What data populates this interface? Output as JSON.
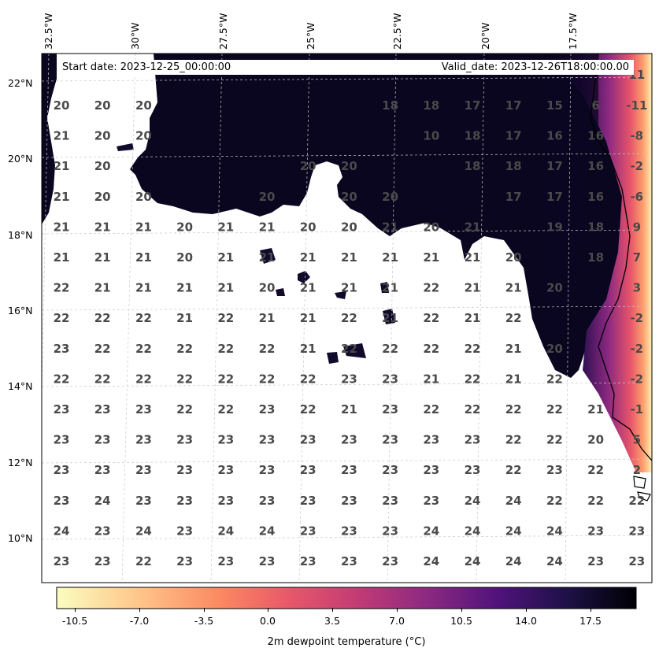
{
  "info": {
    "start_date": "Start date: 2023-12-25_00:00:00",
    "valid_date": "Valid_date: 2023-12-26T18:00:00.00"
  },
  "lon_labels": [
    "32.5°W",
    "30°W",
    "27.5°W",
    "25°W",
    "22.5°W",
    "20°W",
    "17.5°W"
  ],
  "lat_labels": [
    "22°N",
    "20°N",
    "18°N",
    "16°N",
    "14°N",
    "12°N",
    "10°N"
  ],
  "colorbar": {
    "label": "2m dewpoint temperature ($^\\circ$C)",
    "label_display": "2m dewpoint temperature (°C)",
    "ticks": [
      "-10.5",
      "-7.0",
      "-3.5",
      "0.0",
      "3.5",
      "7.0",
      "10.5",
      "14.0",
      "17.5"
    ],
    "min": -12.25,
    "max": 19.25,
    "colormap": "magma_r",
    "colors": [
      "#fcfdbf",
      "#fe9f6d",
      "#de4968",
      "#8c2981",
      "#3b0f70",
      "#000004"
    ]
  },
  "grid_values": [
    [
      "20",
      "20",
      "20",
      "",
      "",
      "",
      "",
      "",
      "18",
      "18",
      "17",
      "17",
      "15",
      "6",
      "-11"
    ],
    [
      "21",
      "20",
      "20",
      "",
      "",
      "",
      "",
      "",
      "",
      "10",
      "18",
      "17",
      "16",
      "16",
      "-8"
    ],
    [
      "21",
      "20",
      "",
      "",
      "",
      "",
      "20",
      "20",
      "",
      "",
      "18",
      "18",
      "17",
      "16",
      "-2"
    ],
    [
      "21",
      "20",
      "20",
      "",
      "",
      "20",
      "",
      "20",
      "20",
      "",
      "",
      "17",
      "17",
      "16",
      "-6"
    ],
    [
      "21",
      "21",
      "21",
      "20",
      "21",
      "21",
      "20",
      "20",
      "21",
      "20",
      "21",
      "",
      "19",
      "18",
      "9"
    ],
    [
      "21",
      "21",
      "21",
      "20",
      "21",
      "21",
      "21",
      "21",
      "21",
      "21",
      "21",
      "20",
      "",
      "18",
      "7"
    ],
    [
      "22",
      "21",
      "21",
      "21",
      "21",
      "20",
      "21",
      "21",
      "21",
      "22",
      "21",
      "21",
      "20",
      "",
      "3"
    ],
    [
      "22",
      "22",
      "22",
      "21",
      "22",
      "21",
      "21",
      "22",
      "21",
      "22",
      "21",
      "22",
      "",
      "",
      "-2"
    ],
    [
      "23",
      "22",
      "22",
      "22",
      "22",
      "22",
      "21",
      "22",
      "22",
      "22",
      "22",
      "21",
      "20",
      "",
      "-2"
    ],
    [
      "22",
      "22",
      "22",
      "22",
      "22",
      "22",
      "22",
      "23",
      "23",
      "21",
      "22",
      "21",
      "22",
      "",
      "-2"
    ],
    [
      "23",
      "23",
      "23",
      "22",
      "22",
      "23",
      "22",
      "21",
      "23",
      "22",
      "22",
      "22",
      "22",
      "21",
      "-1"
    ],
    [
      "23",
      "23",
      "23",
      "23",
      "23",
      "23",
      "23",
      "23",
      "23",
      "23",
      "23",
      "22",
      "22",
      "20",
      "5"
    ],
    [
      "23",
      "23",
      "23",
      "23",
      "23",
      "23",
      "23",
      "23",
      "23",
      "23",
      "23",
      "22",
      "23",
      "22",
      "2"
    ],
    [
      "23",
      "24",
      "23",
      "23",
      "23",
      "23",
      "23",
      "23",
      "23",
      "23",
      "24",
      "24",
      "22",
      "22",
      "22"
    ],
    [
      "24",
      "23",
      "24",
      "23",
      "24",
      "24",
      "23",
      "23",
      "23",
      "24",
      "24",
      "24",
      "24",
      "23",
      "23"
    ],
    [
      "23",
      "23",
      "22",
      "23",
      "23",
      "23",
      "23",
      "23",
      "23",
      "24",
      "24",
      "24",
      "24",
      "23",
      "23"
    ]
  ],
  "top_row_partial": [
    "",
    "",
    "",
    "",
    "",
    "",
    "",
    "",
    "",
    "",
    "",
    "",
    "",
    "",
    "11"
  ]
}
